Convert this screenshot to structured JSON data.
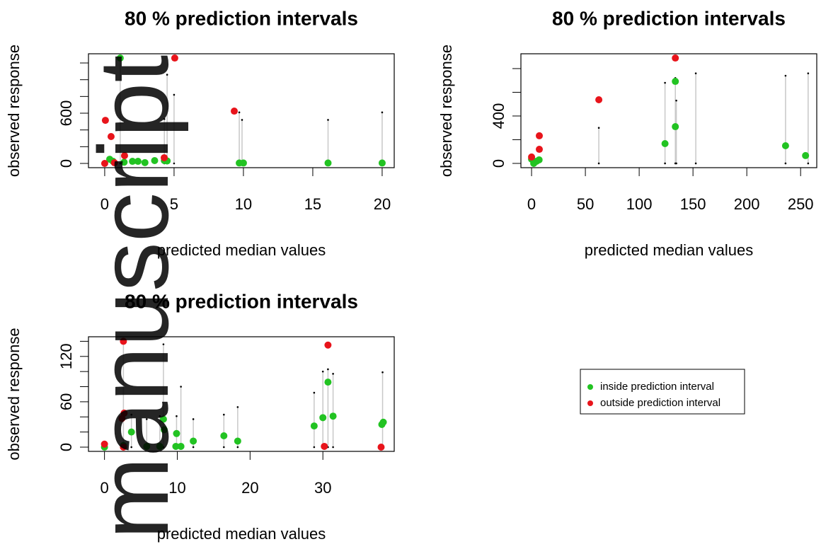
{
  "chart_data": [
    {
      "type": "scatter",
      "title": "80 % prediction intervals",
      "xlabel": "predicted median values",
      "ylabel": "observed response",
      "xlim": [
        -1.17,
        20.87
      ],
      "ylim": [
        -50.7,
        1310
      ],
      "xticks": [
        0,
        5,
        10,
        15,
        20
      ],
      "yticks": [
        0,
        600
      ],
      "yminor": [
        200,
        400,
        800,
        1000,
        1200
      ],
      "series": [
        {
          "name": "inside prediction interval",
          "color": "#22c322",
          "x": [
            1.12,
            16.1,
            20.0,
            9.7,
            10.0,
            3.6,
            4.3,
            4.5,
            2.0,
            2.4,
            2.9,
            1.4,
            0.6,
            0.36
          ],
          "values": [
            1259,
            5,
            5,
            5,
            5,
            34,
            34,
            30,
            25,
            25,
            10,
            15,
            25,
            50
          ]
        },
        {
          "name": "outside prediction interval",
          "color": "#e8141b",
          "x": [
            5.05,
            0.05,
            0.46,
            9.34,
            1.43,
            4.29,
            0,
            0.7
          ],
          "values": [
            1259,
            515,
            321,
            625,
            93,
            68,
            0,
            8
          ]
        }
      ],
      "intervals": {
        "x": [
          4.5,
          5.0,
          4.3,
          9.7,
          9.9,
          16.1,
          20.0,
          1.12
        ],
        "lower": [
          0,
          0,
          0,
          0,
          0,
          0,
          0,
          0
        ],
        "upper": [
          1060,
          820,
          530,
          610,
          520,
          520,
          610,
          1259
        ]
      }
    },
    {
      "type": "scatter",
      "title": "80 % prediction intervals",
      "xlabel": "predicted median values",
      "ylabel": "observed response",
      "xlim": [
        -9.9,
        265
      ],
      "ylim": [
        -36,
        925
      ],
      "xticks": [
        0,
        50,
        100,
        150,
        200,
        250
      ],
      "yticks": [
        0,
        400
      ],
      "yminor": [
        200,
        600,
        800
      ],
      "series": [
        {
          "name": "inside prediction interval",
          "color": "#22c322",
          "x": [
            254.6,
            236,
            133.6,
            133.6,
            124,
            0,
            4.6,
            7,
            2
          ],
          "values": [
            66,
            149,
            692,
            310,
            167,
            36,
            18,
            30,
            0
          ]
        },
        {
          "name": "outside prediction interval",
          "color": "#e8141b",
          "x": [
            133.6,
            62.5,
            7.2,
            7.2,
            0
          ],
          "values": [
            889,
            537,
            233,
            119,
            54
          ]
        }
      ],
      "intervals": {
        "x": [
          124,
          133.6,
          134.5,
          152.6,
          236,
          257,
          62.5
        ],
        "lower": [
          0,
          0,
          0,
          0,
          0,
          0,
          0
        ],
        "upper": [
          680,
          720,
          530,
          760,
          740,
          760,
          300
        ]
      }
    },
    {
      "type": "scatter",
      "title": "80 % prediction intervals",
      "xlabel": "predicted median values",
      "ylabel": "observed response",
      "xlim": [
        -2.2,
        39.8
      ],
      "ylim": [
        -5.6,
        146
      ],
      "xticks": [
        0,
        10,
        20,
        30
      ],
      "yticks": [
        0,
        60,
        120
      ],
      "yminor": [
        20,
        40,
        80,
        100,
        140
      ],
      "series": [
        {
          "name": "inside prediction interval",
          "color": "#22c322",
          "x": [
            0,
            2.6,
            3.7,
            5.8,
            7.6,
            8.1,
            8.2,
            9.8,
            9.9,
            10.5,
            12.2,
            16.4,
            18.3,
            28.8,
            30,
            30.7,
            31.4,
            38.1,
            38.3
          ],
          "values": [
            0,
            2,
            20,
            1,
            1,
            37,
            23,
            1,
            18,
            1,
            8,
            15,
            8,
            28,
            39,
            86,
            41,
            30,
            33
          ]
        },
        {
          "name": "outside prediction interval",
          "color": "#e8141b",
          "x": [
            0,
            2.4,
            2.6,
            2.6,
            2.7,
            30.2,
            30.7,
            38
          ],
          "values": [
            4,
            38,
            140,
            0,
            45,
            1,
            135,
            0
          ]
        }
      ],
      "intervals": {
        "x": [
          2.6,
          3.7,
          8.1,
          9.9,
          10.5,
          12.2,
          16.4,
          18.3,
          28.8,
          30,
          30.7,
          31.4,
          38.2,
          5.8,
          7.6
        ],
        "lower": [
          0,
          0,
          0,
          0,
          0,
          0,
          0,
          0,
          0,
          0,
          0,
          0,
          0,
          0,
          0
        ],
        "upper": [
          140,
          43,
          136,
          41,
          80,
          37,
          43,
          53,
          72,
          100,
          103,
          97,
          99,
          37,
          41
        ]
      }
    }
  ],
  "watermark": "manuscript"
}
